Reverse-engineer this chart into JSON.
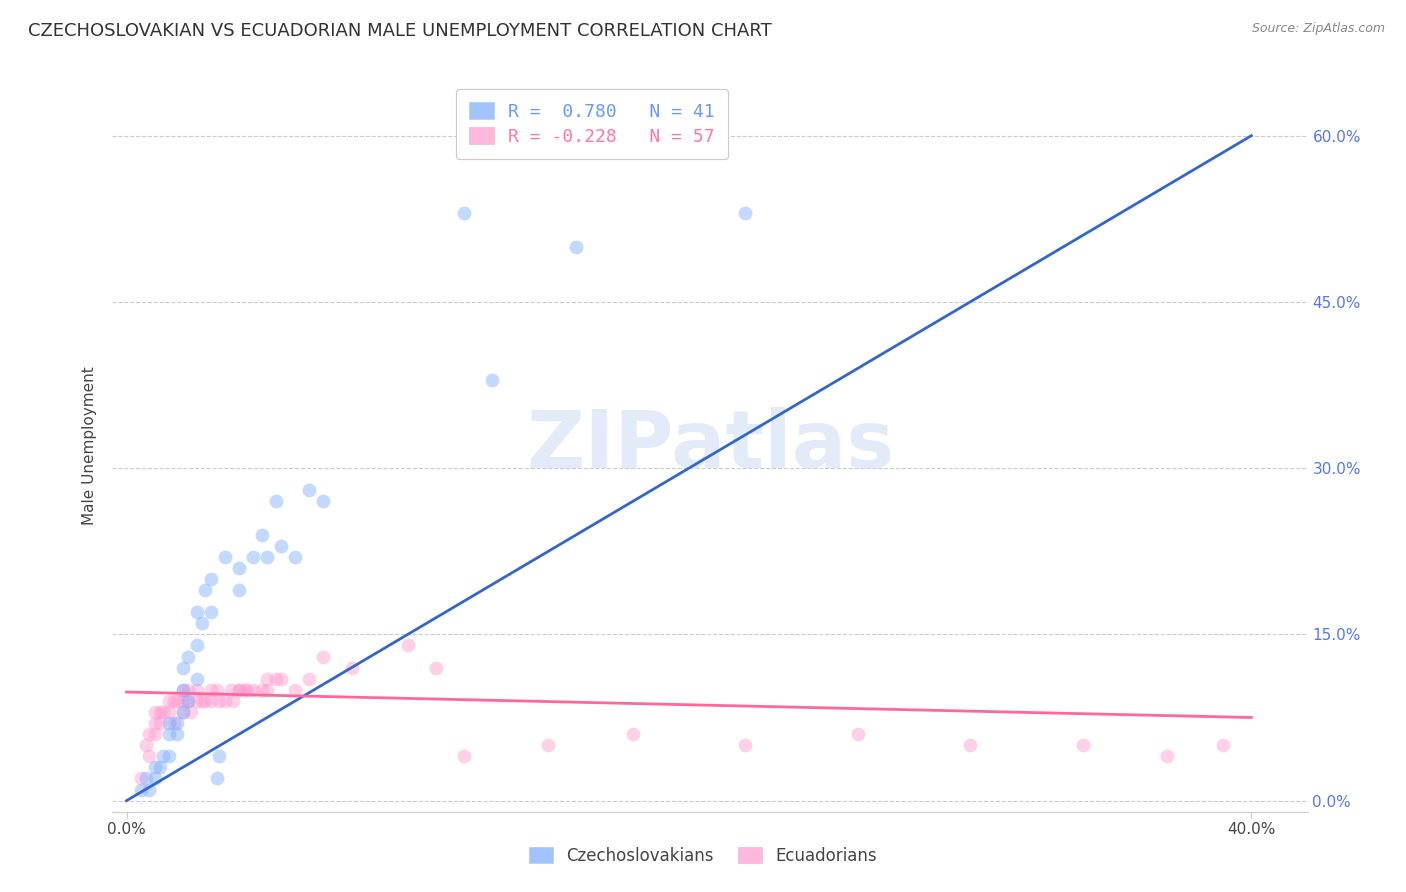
{
  "title": "CZECHOSLOVAKIAN VS ECUADORIAN MALE UNEMPLOYMENT CORRELATION CHART",
  "source": "Source: ZipAtlas.com",
  "ylabel": "Male Unemployment",
  "ytick_labels": [
    "0.0%",
    "15.0%",
    "30.0%",
    "45.0%",
    "60.0%"
  ],
  "ytick_values": [
    0.0,
    0.15,
    0.3,
    0.45,
    0.6
  ],
  "xtick_labels": [
    "0.0%",
    "40.0%"
  ],
  "xtick_positions": [
    0.0,
    0.4
  ],
  "xlim": [
    -0.005,
    0.42
  ],
  "ylim": [
    -0.01,
    0.65
  ],
  "legend_top": [
    {
      "label": "R =  0.780   N = 41",
      "color": "#6699ff"
    },
    {
      "label": "R = -0.228   N = 57",
      "color": "#ff77aa"
    }
  ],
  "legend_bottom": [
    {
      "label": "Czechoslovakians",
      "color": "#6699ff"
    },
    {
      "label": "Ecuadorians",
      "color": "#ff77aa"
    }
  ],
  "watermark": "ZIPatlas",
  "blue_color": "#7aacff",
  "pink_color": "#ff99cc",
  "blue_line_color": "#3366cc",
  "pink_line_color": "#ff6699",
  "blue_scatter": [
    [
      0.005,
      0.01
    ],
    [
      0.007,
      0.02
    ],
    [
      0.008,
      0.01
    ],
    [
      0.01,
      0.02
    ],
    [
      0.01,
      0.03
    ],
    [
      0.012,
      0.03
    ],
    [
      0.013,
      0.04
    ],
    [
      0.015,
      0.04
    ],
    [
      0.015,
      0.06
    ],
    [
      0.015,
      0.07
    ],
    [
      0.018,
      0.06
    ],
    [
      0.018,
      0.07
    ],
    [
      0.02,
      0.08
    ],
    [
      0.02,
      0.1
    ],
    [
      0.02,
      0.12
    ],
    [
      0.022,
      0.09
    ],
    [
      0.022,
      0.13
    ],
    [
      0.025,
      0.11
    ],
    [
      0.025,
      0.14
    ],
    [
      0.025,
      0.17
    ],
    [
      0.027,
      0.16
    ],
    [
      0.028,
      0.19
    ],
    [
      0.03,
      0.17
    ],
    [
      0.03,
      0.2
    ],
    [
      0.032,
      0.02
    ],
    [
      0.033,
      0.04
    ],
    [
      0.035,
      0.22
    ],
    [
      0.04,
      0.21
    ],
    [
      0.04,
      0.19
    ],
    [
      0.045,
      0.22
    ],
    [
      0.048,
      0.24
    ],
    [
      0.05,
      0.22
    ],
    [
      0.053,
      0.27
    ],
    [
      0.055,
      0.23
    ],
    [
      0.06,
      0.22
    ],
    [
      0.065,
      0.28
    ],
    [
      0.07,
      0.27
    ],
    [
      0.12,
      0.53
    ],
    [
      0.13,
      0.38
    ],
    [
      0.16,
      0.5
    ],
    [
      0.22,
      0.53
    ]
  ],
  "pink_scatter": [
    [
      0.005,
      0.02
    ],
    [
      0.007,
      0.05
    ],
    [
      0.008,
      0.04
    ],
    [
      0.008,
      0.06
    ],
    [
      0.01,
      0.06
    ],
    [
      0.01,
      0.07
    ],
    [
      0.01,
      0.08
    ],
    [
      0.012,
      0.07
    ],
    [
      0.012,
      0.08
    ],
    [
      0.013,
      0.08
    ],
    [
      0.015,
      0.08
    ],
    [
      0.015,
      0.09
    ],
    [
      0.017,
      0.07
    ],
    [
      0.017,
      0.09
    ],
    [
      0.018,
      0.09
    ],
    [
      0.02,
      0.08
    ],
    [
      0.02,
      0.09
    ],
    [
      0.02,
      0.1
    ],
    [
      0.022,
      0.09
    ],
    [
      0.022,
      0.1
    ],
    [
      0.023,
      0.08
    ],
    [
      0.025,
      0.09
    ],
    [
      0.025,
      0.1
    ],
    [
      0.027,
      0.09
    ],
    [
      0.028,
      0.09
    ],
    [
      0.03,
      0.09
    ],
    [
      0.03,
      0.1
    ],
    [
      0.032,
      0.1
    ],
    [
      0.033,
      0.09
    ],
    [
      0.035,
      0.09
    ],
    [
      0.037,
      0.1
    ],
    [
      0.038,
      0.09
    ],
    [
      0.04,
      0.1
    ],
    [
      0.04,
      0.1
    ],
    [
      0.042,
      0.1
    ],
    [
      0.043,
      0.1
    ],
    [
      0.045,
      0.1
    ],
    [
      0.048,
      0.1
    ],
    [
      0.05,
      0.11
    ],
    [
      0.05,
      0.1
    ],
    [
      0.053,
      0.11
    ],
    [
      0.055,
      0.11
    ],
    [
      0.06,
      0.1
    ],
    [
      0.065,
      0.11
    ],
    [
      0.07,
      0.13
    ],
    [
      0.08,
      0.12
    ],
    [
      0.1,
      0.14
    ],
    [
      0.11,
      0.12
    ],
    [
      0.12,
      0.04
    ],
    [
      0.15,
      0.05
    ],
    [
      0.18,
      0.06
    ],
    [
      0.22,
      0.05
    ],
    [
      0.26,
      0.06
    ],
    [
      0.3,
      0.05
    ],
    [
      0.34,
      0.05
    ],
    [
      0.37,
      0.04
    ],
    [
      0.39,
      0.05
    ]
  ],
  "blue_line": [
    [
      0.0,
      0.0
    ],
    [
      0.4,
      0.6
    ]
  ],
  "pink_line": [
    [
      0.0,
      0.098
    ],
    [
      0.4,
      0.075
    ]
  ],
  "background_color": "#ffffff",
  "grid_color": "#cccccc",
  "axis_color": "#cccccc",
  "title_fontsize": 13,
  "ylabel_fontsize": 11,
  "tick_fontsize": 11,
  "right_tick_color": "#5577ee",
  "scatter_size": 100,
  "scatter_alpha": 0.45,
  "line_width": 2.0
}
